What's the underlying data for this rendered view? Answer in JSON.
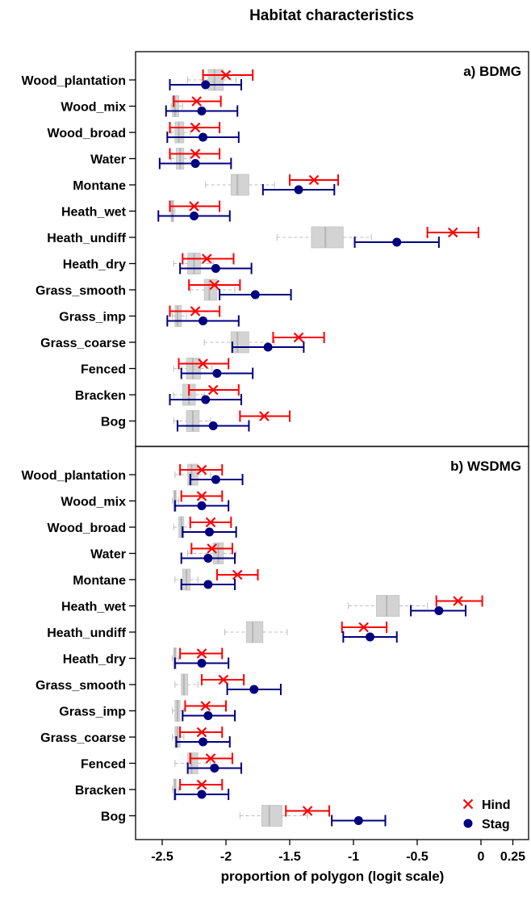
{
  "chart_data": {
    "type": "dot-errorbar-boxplot",
    "title": "Habitat characteristics",
    "xlabel": "proportion of polygon (logit scale)",
    "xlim": [
      -2.68,
      0.3
    ],
    "xticks": [
      -2.5,
      -2,
      -1.5,
      -1,
      -0.5,
      0,
      0.25
    ],
    "xtick_labels": [
      "-2.5",
      "-2",
      "-1.5",
      "-1",
      "-0.5",
      "0",
      "0.25"
    ],
    "legend": {
      "position": "bottom-right",
      "entries": [
        {
          "name": "Hind",
          "marker": "x",
          "color": "#ff0000"
        },
        {
          "name": "Stag",
          "marker": "circle",
          "color": "#000080"
        }
      ]
    },
    "colors": {
      "hind": "#ff0000",
      "stag": "#000080",
      "box": "#d3d3d3",
      "whisker": "#bdbdbd"
    },
    "panels": [
      {
        "label": "a) BDMG",
        "categories": [
          "Wood_plantation",
          "Wood_mix",
          "Wood_broad",
          "Water",
          "Montane",
          "Heath_wet",
          "Heath_undiff",
          "Heath_dry",
          "Grass_smooth",
          "Grass_imp",
          "Grass_coarse",
          "Fenced",
          "Bracken",
          "Bog"
        ],
        "hind": [
          {
            "mean": -2.0,
            "lo": -2.18,
            "hi": -1.79
          },
          {
            "mean": -2.23,
            "lo": -2.41,
            "hi": -2.04
          },
          {
            "mean": -2.24,
            "lo": -2.44,
            "hi": -2.05
          },
          {
            "mean": -2.24,
            "lo": -2.44,
            "hi": -2.05
          },
          {
            "mean": -1.31,
            "lo": -1.5,
            "hi": -1.12
          },
          {
            "mean": -2.25,
            "lo": -2.44,
            "hi": -2.05
          },
          {
            "mean": -0.22,
            "lo": -0.42,
            "hi": -0.02
          },
          {
            "mean": -2.15,
            "lo": -2.34,
            "hi": -1.94
          },
          {
            "mean": -2.09,
            "lo": -2.29,
            "hi": -1.89
          },
          {
            "mean": -2.24,
            "lo": -2.44,
            "hi": -2.05
          },
          {
            "mean": -1.43,
            "lo": -1.63,
            "hi": -1.23
          },
          {
            "mean": -2.18,
            "lo": -2.37,
            "hi": -1.98
          },
          {
            "mean": -2.1,
            "lo": -2.29,
            "hi": -1.9
          },
          {
            "mean": -1.7,
            "lo": -1.89,
            "hi": -1.5
          }
        ],
        "stag": [
          {
            "mean": -2.16,
            "lo": -2.44,
            "hi": -1.88
          },
          {
            "mean": -2.19,
            "lo": -2.47,
            "hi": -1.91
          },
          {
            "mean": -2.18,
            "lo": -2.46,
            "hi": -1.9
          },
          {
            "mean": -2.24,
            "lo": -2.52,
            "hi": -1.96
          },
          {
            "mean": -1.43,
            "lo": -1.71,
            "hi": -1.15
          },
          {
            "mean": -2.25,
            "lo": -2.53,
            "hi": -1.97
          },
          {
            "mean": -0.66,
            "lo": -0.99,
            "hi": -0.33
          },
          {
            "mean": -2.08,
            "lo": -2.36,
            "hi": -1.8
          },
          {
            "mean": -1.77,
            "lo": -2.05,
            "hi": -1.49
          },
          {
            "mean": -2.18,
            "lo": -2.46,
            "hi": -1.9
          },
          {
            "mean": -1.67,
            "lo": -1.95,
            "hi": -1.39
          },
          {
            "mean": -2.07,
            "lo": -2.35,
            "hi": -1.79
          },
          {
            "mean": -2.16,
            "lo": -2.44,
            "hi": -1.88
          },
          {
            "mean": -2.1,
            "lo": -2.38,
            "hi": -1.82
          }
        ],
        "box": [
          {
            "wlo": -2.3,
            "q1": -2.14,
            "med": -2.09,
            "q3": -2.02,
            "whi": -1.92
          },
          {
            "wlo": -2.43,
            "q1": -2.42,
            "med": -2.4,
            "q3": -2.37,
            "whi": -2.34
          },
          {
            "wlo": -2.43,
            "q1": -2.4,
            "med": -2.37,
            "q3": -2.33,
            "whi": -2.28
          },
          {
            "wlo": -2.43,
            "q1": -2.39,
            "med": -2.36,
            "q3": -2.33,
            "whi": -2.28
          },
          {
            "wlo": -2.16,
            "q1": -1.96,
            "med": -1.91,
            "q3": -1.82,
            "whi": -1.62
          },
          {
            "wlo": -2.43,
            "q1": -2.43,
            "med": -2.42,
            "q3": -2.41,
            "whi": -2.4
          },
          {
            "wlo": -1.6,
            "q1": -1.33,
            "med": -1.22,
            "q3": -1.08,
            "whi": -0.86
          },
          {
            "wlo": -2.41,
            "q1": -2.3,
            "med": -2.25,
            "q3": -2.2,
            "whi": -2.1
          },
          {
            "wlo": -2.28,
            "q1": -2.17,
            "med": -2.13,
            "q3": -2.07,
            "whi": -1.93
          },
          {
            "wlo": -2.42,
            "q1": -2.4,
            "med": -2.38,
            "q3": -2.35,
            "whi": -2.31
          },
          {
            "wlo": -2.17,
            "q1": -1.96,
            "med": -1.91,
            "q3": -1.82,
            "whi": -1.62
          },
          {
            "wlo": -2.41,
            "q1": -2.31,
            "med": -2.26,
            "q3": -2.2,
            "whi": -2.11
          },
          {
            "wlo": -2.41,
            "q1": -2.34,
            "med": -2.29,
            "q3": -2.24,
            "whi": -2.17
          },
          {
            "wlo": -2.41,
            "q1": -2.31,
            "med": -2.26,
            "q3": -2.21,
            "whi": -2.12
          }
        ]
      },
      {
        "label": "b) WSDMG",
        "categories": [
          "Wood_plantation",
          "Wood_mix",
          "Wood_broad",
          "Water",
          "Montane",
          "Heath_wet",
          "Heath_undiff",
          "Heath_dry",
          "Grass_smooth",
          "Grass_imp",
          "Grass_coarse",
          "Fenced",
          "Bracken",
          "Bog"
        ],
        "hind": [
          {
            "mean": -2.19,
            "lo": -2.36,
            "hi": -2.03
          },
          {
            "mean": -2.19,
            "lo": -2.35,
            "hi": -2.03
          },
          {
            "mean": -2.12,
            "lo": -2.28,
            "hi": -1.96
          },
          {
            "mean": -2.11,
            "lo": -2.27,
            "hi": -1.95
          },
          {
            "mean": -1.91,
            "lo": -2.07,
            "hi": -1.75
          },
          {
            "mean": -0.18,
            "lo": -0.35,
            "hi": 0.01
          },
          {
            "mean": -0.92,
            "lo": -1.09,
            "hi": -0.74
          },
          {
            "mean": -2.19,
            "lo": -2.36,
            "hi": -2.03
          },
          {
            "mean": -2.02,
            "lo": -2.19,
            "hi": -1.86
          },
          {
            "mean": -2.16,
            "lo": -2.32,
            "hi": -2.0
          },
          {
            "mean": -2.19,
            "lo": -2.36,
            "hi": -2.03
          },
          {
            "mean": -2.12,
            "lo": -2.28,
            "hi": -1.95
          },
          {
            "mean": -2.19,
            "lo": -2.36,
            "hi": -2.03
          },
          {
            "mean": -1.36,
            "lo": -1.53,
            "hi": -1.19
          }
        ],
        "stag": [
          {
            "mean": -2.08,
            "lo": -2.28,
            "hi": -1.87
          },
          {
            "mean": -2.19,
            "lo": -2.4,
            "hi": -1.98
          },
          {
            "mean": -2.13,
            "lo": -2.34,
            "hi": -1.92
          },
          {
            "mean": -2.14,
            "lo": -2.35,
            "hi": -1.93
          },
          {
            "mean": -2.14,
            "lo": -2.35,
            "hi": -1.93
          },
          {
            "mean": -0.33,
            "lo": -0.55,
            "hi": -0.12
          },
          {
            "mean": -0.87,
            "lo": -1.08,
            "hi": -0.66
          },
          {
            "mean": -2.19,
            "lo": -2.4,
            "hi": -1.98
          },
          {
            "mean": -1.78,
            "lo": -1.99,
            "hi": -1.57
          },
          {
            "mean": -2.14,
            "lo": -2.34,
            "hi": -1.93
          },
          {
            "mean": -2.18,
            "lo": -2.39,
            "hi": -1.97
          },
          {
            "mean": -2.09,
            "lo": -2.3,
            "hi": -1.88
          },
          {
            "mean": -2.19,
            "lo": -2.4,
            "hi": -1.98
          },
          {
            "mean": -0.96,
            "lo": -1.17,
            "hi": -0.75
          }
        ],
        "box": [
          {
            "wlo": -2.4,
            "q1": -2.3,
            "med": -2.27,
            "q3": -2.22,
            "whi": -2.12
          },
          {
            "wlo": -2.42,
            "q1": -2.41,
            "med": -2.4,
            "q3": -2.39,
            "whi": -2.37
          },
          {
            "wlo": -2.41,
            "q1": -2.37,
            "med": -2.35,
            "q3": -2.33,
            "whi": -2.28
          },
          {
            "wlo": -2.3,
            "q1": -2.1,
            "med": -2.06,
            "q3": -2.02,
            "whi": -1.92
          },
          {
            "wlo": -2.4,
            "q1": -2.34,
            "med": -2.31,
            "q3": -2.28,
            "whi": -2.22
          },
          {
            "wlo": -1.04,
            "q1": -0.82,
            "med": -0.74,
            "q3": -0.64,
            "whi": -0.42
          },
          {
            "wlo": -2.01,
            "q1": -1.84,
            "med": -1.79,
            "q3": -1.71,
            "whi": -1.52
          },
          {
            "wlo": -2.42,
            "q1": -2.41,
            "med": -2.4,
            "q3": -2.39,
            "whi": -2.37
          },
          {
            "wlo": -2.4,
            "q1": -2.35,
            "med": -2.33,
            "q3": -2.3,
            "whi": -2.22
          },
          {
            "wlo": -2.42,
            "q1": -2.4,
            "med": -2.38,
            "q3": -2.36,
            "whi": -2.33
          },
          {
            "wlo": -2.42,
            "q1": -2.4,
            "med": -2.38,
            "q3": -2.36,
            "whi": -2.33
          },
          {
            "wlo": -2.4,
            "q1": -2.3,
            "med": -2.27,
            "q3": -2.22,
            "whi": -2.12
          },
          {
            "wlo": -2.42,
            "q1": -2.41,
            "med": -2.4,
            "q3": -2.39,
            "whi": -2.37
          },
          {
            "wlo": -1.89,
            "q1": -1.72,
            "med": -1.66,
            "q3": -1.56,
            "whi": -1.36
          }
        ]
      }
    ]
  }
}
